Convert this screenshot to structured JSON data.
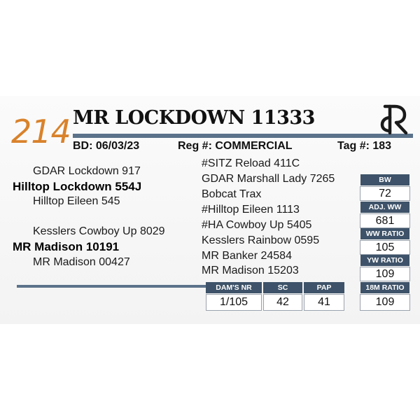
{
  "colors": {
    "accent": "#d9822b",
    "navy": "#3e5369",
    "line": "#5b728a"
  },
  "lot_number": "214",
  "animal_name": "MR LOCKDOWN 11333",
  "logo_icon": "r-brand-icon",
  "meta": {
    "bd": "BD: 06/03/23",
    "reg": "Reg #: COMMERCIAL",
    "tag": "Tag #: 183"
  },
  "pedigree_left": {
    "sire_sire": "GDAR Lockdown 917",
    "sire": "Hilltop Lockdown 554J",
    "sire_dam": "Hilltop Eileen 545",
    "dam_sire": "Kesslers Cowboy Up 8029",
    "dam": "MR Madison 10191",
    "dam_dam": "MR Madison 00427"
  },
  "pedigree_right": [
    "#SITZ Reload 411C",
    "GDAR Marshall Lady 7265",
    "Bobcat Trax",
    "#Hilltop Eileen 1113",
    "#HA Cowboy Up 5405",
    "Kesslers Rainbow 0595",
    "MR Banker 24584",
    "MR Madison 15203"
  ],
  "stats": [
    {
      "label": "BW",
      "value": "72"
    },
    {
      "label": "ADJ. WW",
      "value": "681"
    },
    {
      "label": "WW RATIO",
      "value": "105"
    },
    {
      "label": "YW RATIO",
      "value": "109"
    },
    {
      "label": "18M RATIO",
      "value": "109"
    }
  ],
  "bottom_stats": [
    {
      "label": "DAM'S NR",
      "value": "1/105"
    },
    {
      "label": "SC",
      "value": "42"
    },
    {
      "label": "PAP",
      "value": "41"
    }
  ]
}
